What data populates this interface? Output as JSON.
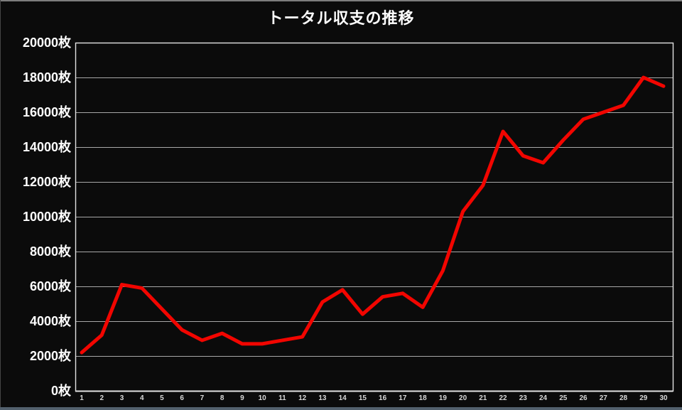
{
  "frame": {
    "top_line_color": "#7d7d7d",
    "left_line_color": "#454545",
    "bottom_strip_color": "#52606d",
    "background": "#0b0b0b"
  },
  "chart_data": {
    "type": "line",
    "title": "トータル収支の推移",
    "unit": "枚",
    "x_labels": [
      "1",
      "2",
      "3",
      "4",
      "5",
      "6",
      "7",
      "8",
      "9",
      "10",
      "11",
      "12",
      "13",
      "14",
      "15",
      "16",
      "17",
      "18",
      "19",
      "20",
      "21",
      "22",
      "23",
      "24",
      "25",
      "26",
      "27",
      "28",
      "29",
      "30"
    ],
    "values": [
      2200,
      3200,
      6100,
      5900,
      4700,
      3500,
      2900,
      3300,
      2700,
      2700,
      2900,
      3100,
      5100,
      5800,
      4400,
      5400,
      5600,
      4800,
      6900,
      10300,
      11800,
      14900,
      13500,
      13100,
      14400,
      15600,
      16000,
      16400,
      18000,
      17500
    ],
    "ylim": [
      0,
      20000
    ],
    "ytick_step": 2000,
    "ytick_labels": [
      "0枚",
      "2000枚",
      "4000枚",
      "6000枚",
      "8000枚",
      "10000枚",
      "12000枚",
      "14000枚",
      "16000枚",
      "18000枚",
      "20000枚"
    ],
    "grid": "horizontal-only",
    "legend": "none",
    "line_color": "#f20500",
    "line_width": 5,
    "grid_color": "#a8a8a8",
    "axis_color": "#e2e2e2",
    "ylabel_color": "#ffffff",
    "xlabel_color": "#d9d9d9",
    "background": "#0b0b0b"
  }
}
